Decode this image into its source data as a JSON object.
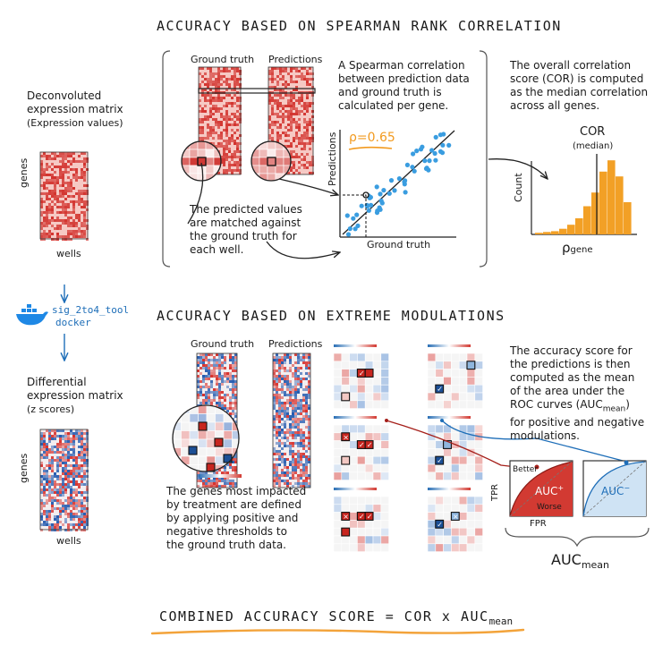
{
  "left": {
    "deconv_title": "Deconvoluted",
    "deconv_title2": "expression matrix",
    "deconv_sub": "(Expression values)",
    "genes_label": "genes",
    "wells_label": "wells",
    "tool_name": "sig_2to4_tool",
    "tool_sub": "docker",
    "diff_title": "Differential",
    "diff_title2": "expression matrix",
    "diff_sub": "(z scores)",
    "genes_label2": "genes",
    "wells_label2": "wells"
  },
  "section1": {
    "title": "ACCURACY BASED ON SPEARMAN RANK CORRELATION",
    "ground_truth": "Ground truth",
    "predictions": "Predictions",
    "desc_lines": [
      "A Spearman correlation",
      "between prediction data",
      "and ground truth is",
      "calculated per gene."
    ],
    "rho": "ρ=0.65",
    "y_axis": "Predictions",
    "x_axis": "Ground truth",
    "match_lines": [
      "The predicted values",
      "are matched against",
      "the ground truth for",
      "each well."
    ],
    "overall_lines": [
      "The overall correlation",
      "score (COR) is computed",
      "as the median correlation",
      "across all genes."
    ],
    "cor_label": "COR",
    "median_label": "(median)",
    "count_label": "Count",
    "rho_gene": "ρ",
    "rho_gene_sub": "gene",
    "colors": {
      "scatter": "#3a9de0",
      "hist": "#f2a026",
      "rho": "#f29a1f"
    }
  },
  "section2": {
    "title": "ACCURACY BASED ON EXTREME MODULATIONS",
    "ground_truth": "Ground truth",
    "predictions": "Predictions",
    "genes_lines": [
      "The genes most impacted",
      "by treatment are defined",
      "by applying positive and",
      "negative thresholds to",
      "the ground truth data."
    ],
    "score_lines": [
      "The accuracy score for",
      "the predictions is then",
      "computed as the mean",
      "of the area under the",
      "ROC curves (AUC",
      ")",
      "for positive and negative",
      "modulations."
    ],
    "auc_mean_sub": "mean",
    "better": "Better",
    "worse": "Worse",
    "tpr": "TPR",
    "fpr": "FPR",
    "auc_plus": "AUC",
    "auc_plus_sup": "+",
    "auc_minus": "AUC",
    "auc_minus_sup": "−",
    "auc_mean": "AUC",
    "auc_mean_sub2": "mean"
  },
  "footer": {
    "formula": "COMBINED ACCURACY SCORE = COR x AUC",
    "formula_sub": "mean"
  },
  "colors": {
    "red": "#d23a32",
    "blue": "#1e6eb8",
    "orange": "#f3a33a",
    "dark": "#1a1a1a"
  }
}
